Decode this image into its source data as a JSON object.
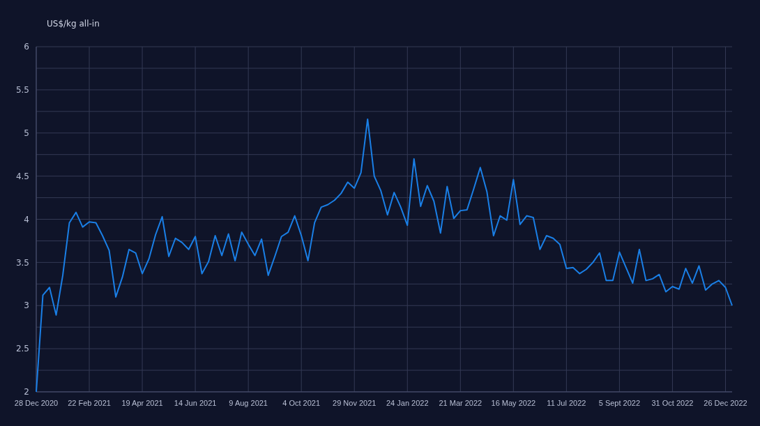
{
  "chart_data": {
    "type": "line",
    "ylabel": "US$/kg all-in",
    "x": [
      "2020-12-28",
      "2021-01-04",
      "2021-01-11",
      "2021-01-18",
      "2021-01-25",
      "2021-02-01",
      "2021-02-08",
      "2021-02-15",
      "2021-02-22",
      "2021-03-01",
      "2021-03-08",
      "2021-03-15",
      "2021-03-22",
      "2021-03-29",
      "2021-04-05",
      "2021-04-12",
      "2021-04-19",
      "2021-04-26",
      "2021-05-03",
      "2021-05-10",
      "2021-05-17",
      "2021-05-24",
      "2021-05-31",
      "2021-06-07",
      "2021-06-14",
      "2021-06-21",
      "2021-06-28",
      "2021-07-05",
      "2021-07-12",
      "2021-07-19",
      "2021-07-26",
      "2021-08-02",
      "2021-08-09",
      "2021-08-16",
      "2021-08-23",
      "2021-08-30",
      "2021-09-06",
      "2021-09-13",
      "2021-09-20",
      "2021-09-27",
      "2021-10-04",
      "2021-10-11",
      "2021-10-18",
      "2021-10-25",
      "2021-11-01",
      "2021-11-08",
      "2021-11-15",
      "2021-11-22",
      "2021-11-29",
      "2021-12-06",
      "2021-12-13",
      "2021-12-20",
      "2021-12-27",
      "2022-01-03",
      "2022-01-10",
      "2022-01-17",
      "2022-01-24",
      "2022-01-31",
      "2022-02-07",
      "2022-02-14",
      "2022-02-21",
      "2022-02-28",
      "2022-03-07",
      "2022-03-14",
      "2022-03-21",
      "2022-03-28",
      "2022-04-04",
      "2022-04-11",
      "2022-04-18",
      "2022-04-25",
      "2022-05-02",
      "2022-05-09",
      "2022-05-16",
      "2022-05-23",
      "2022-05-30",
      "2022-06-06",
      "2022-06-13",
      "2022-06-20",
      "2022-06-27",
      "2022-07-04",
      "2022-07-11",
      "2022-07-18",
      "2022-07-25",
      "2022-08-01",
      "2022-08-08",
      "2022-08-15",
      "2022-08-22",
      "2022-08-29",
      "2022-09-05",
      "2022-09-12",
      "2022-09-19",
      "2022-09-26",
      "2022-10-03",
      "2022-10-10",
      "2022-10-17",
      "2022-10-24",
      "2022-10-31",
      "2022-11-07",
      "2022-11-14",
      "2022-11-21",
      "2022-11-28",
      "2022-12-05",
      "2022-12-12",
      "2022-12-19",
      "2022-12-26",
      "2023-01-02"
    ],
    "series": [
      {
        "color": "#1a7fe6",
        "values": [
          2.0,
          3.12,
          3.21,
          2.89,
          3.35,
          3.96,
          4.08,
          3.91,
          3.97,
          3.96,
          3.81,
          3.64,
          3.1,
          3.33,
          3.65,
          3.61,
          3.37,
          3.54,
          3.82,
          4.03,
          3.57,
          3.78,
          3.73,
          3.65,
          3.8,
          3.37,
          3.51,
          3.81,
          3.58,
          3.83,
          3.52,
          3.85,
          3.71,
          3.58,
          3.77,
          3.35,
          3.57,
          3.8,
          3.85,
          4.04,
          3.81,
          3.52,
          3.96,
          4.14,
          4.17,
          4.22,
          4.3,
          4.43,
          4.36,
          4.54,
          5.16,
          4.5,
          4.33,
          4.05,
          4.31,
          4.14,
          3.93,
          4.7,
          4.15,
          4.39,
          4.21,
          3.84,
          4.38,
          4.01,
          4.1,
          4.11,
          4.35,
          4.6,
          4.32,
          3.81,
          4.04,
          3.99,
          4.46,
          3.94,
          4.04,
          4.02,
          3.65,
          3.81,
          3.78,
          3.71,
          3.43,
          3.44,
          3.37,
          3.42,
          3.5,
          3.61,
          3.29,
          3.29,
          3.62,
          3.44,
          3.26,
          3.65,
          3.29,
          3.31,
          3.36,
          3.16,
          3.22,
          3.19,
          3.43,
          3.26,
          3.46,
          3.18,
          3.25,
          3.29,
          3.21,
          3.0
        ]
      }
    ],
    "xlim": [
      "2020-12-28",
      "2023-01-02"
    ],
    "xticks": [
      {
        "value": "2020-12-28",
        "label": "28 Dec 2020"
      },
      {
        "value": "2021-02-22",
        "label": "22 Feb 2021"
      },
      {
        "value": "2021-04-19",
        "label": "19 Apr 2021"
      },
      {
        "value": "2021-06-14",
        "label": "14 Jun 2021"
      },
      {
        "value": "2021-08-09",
        "label": "9 Aug 2021"
      },
      {
        "value": "2021-10-04",
        "label": "4 Oct 2021"
      },
      {
        "value": "2021-11-29",
        "label": "29 Nov 2021"
      },
      {
        "value": "2022-01-24",
        "label": "24 Jan 2022"
      },
      {
        "value": "2022-03-21",
        "label": "21 Mar 2022"
      },
      {
        "value": "2022-05-16",
        "label": "16 May 2022"
      },
      {
        "value": "2022-07-11",
        "label": "11 Jul 2022"
      },
      {
        "value": "2022-09-05",
        "label": "5 Sept 2022"
      },
      {
        "value": "2022-10-31",
        "label": "31 Oct 2022"
      },
      {
        "value": "2022-12-26",
        "label": "26 Dec 2022"
      }
    ],
    "ylim": [
      2,
      6
    ],
    "yticks": [
      2,
      {
        "value": 2.25,
        "label": null
      },
      2.5,
      {
        "value": 2.75,
        "label": null
      },
      3,
      {
        "value": 3.25,
        "label": null
      },
      3.5,
      {
        "value": 3.75,
        "label": null
      },
      4,
      {
        "value": 4.25,
        "label": null
      },
      4.5,
      {
        "value": 4.75,
        "label": null
      },
      5,
      {
        "value": 5.25,
        "label": null
      },
      5.5,
      {
        "value": 5.75,
        "label": null
      },
      6
    ],
    "grid": true,
    "line_style": "solid"
  }
}
